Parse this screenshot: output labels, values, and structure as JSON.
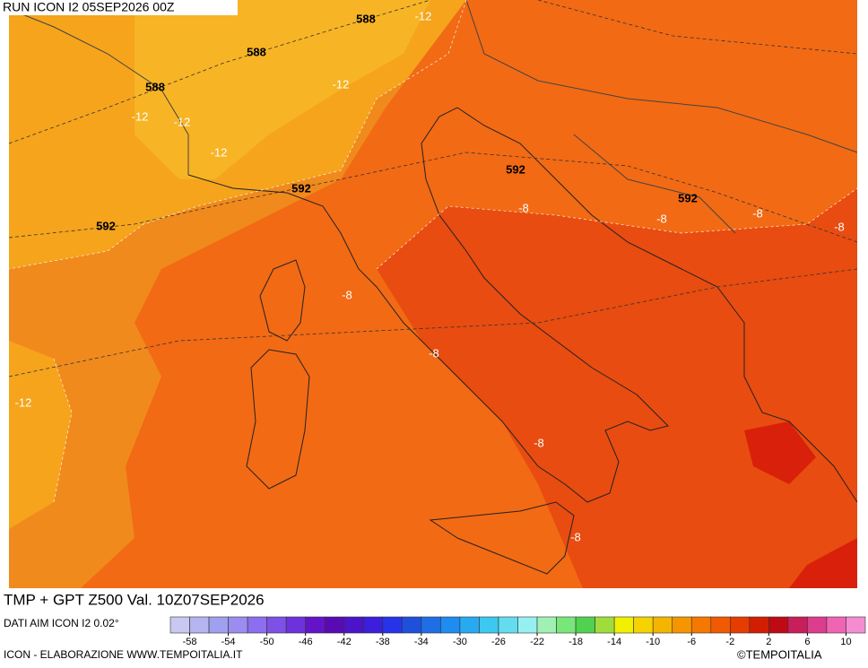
{
  "header": {
    "run": "RUN ICON I2 05SEP2026 00Z"
  },
  "title": "TMP + GPT Z500 Val. 10Z07SEP2026",
  "source": "DATI AIM ICON I2 0.02°",
  "credit": "ICON - ELABORAZIONE WWW.TEMPOITALIA.IT",
  "copyright": "©TEMPOITALIA",
  "contour_labels": [
    588,
    -12,
    588,
    588,
    -12,
    -12,
    -12,
    -12,
    592,
    592,
    592,
    -8,
    -8,
    592,
    -8,
    -8,
    -8,
    -8,
    -12,
    -8,
    -8
  ],
  "colorbar": {
    "lim": [
      -60,
      12
    ],
    "ticks": [
      -58,
      -54,
      -50,
      -46,
      -42,
      -38,
      -34,
      -30,
      -26,
      -22,
      -18,
      -14,
      -10,
      -6,
      -2,
      2,
      6,
      10
    ],
    "colors": [
      "#c8c8f0",
      "#b4b4f0",
      "#a0a0f0",
      "#9b8cf0",
      "#8c6ef0",
      "#7d50e6",
      "#6e32dc",
      "#6414c8",
      "#5a0ab4",
      "#4b14c8",
      "#3c1edc",
      "#2832e6",
      "#1e50dc",
      "#1e6ee6",
      "#1e8cf0",
      "#28aaf0",
      "#3cc8f0",
      "#64dcf0",
      "#96f0f0",
      "#a0f0b4",
      "#78e678",
      "#50d250",
      "#a0dc3c",
      "#f0f000",
      "#f5d200",
      "#f5b400",
      "#f59600",
      "#f57800",
      "#f05a00",
      "#e63c00",
      "#d21e00",
      "#be0a14",
      "#c81e5a",
      "#dc3c8c",
      "#f064b4",
      "#f58cd2"
    ]
  }
}
